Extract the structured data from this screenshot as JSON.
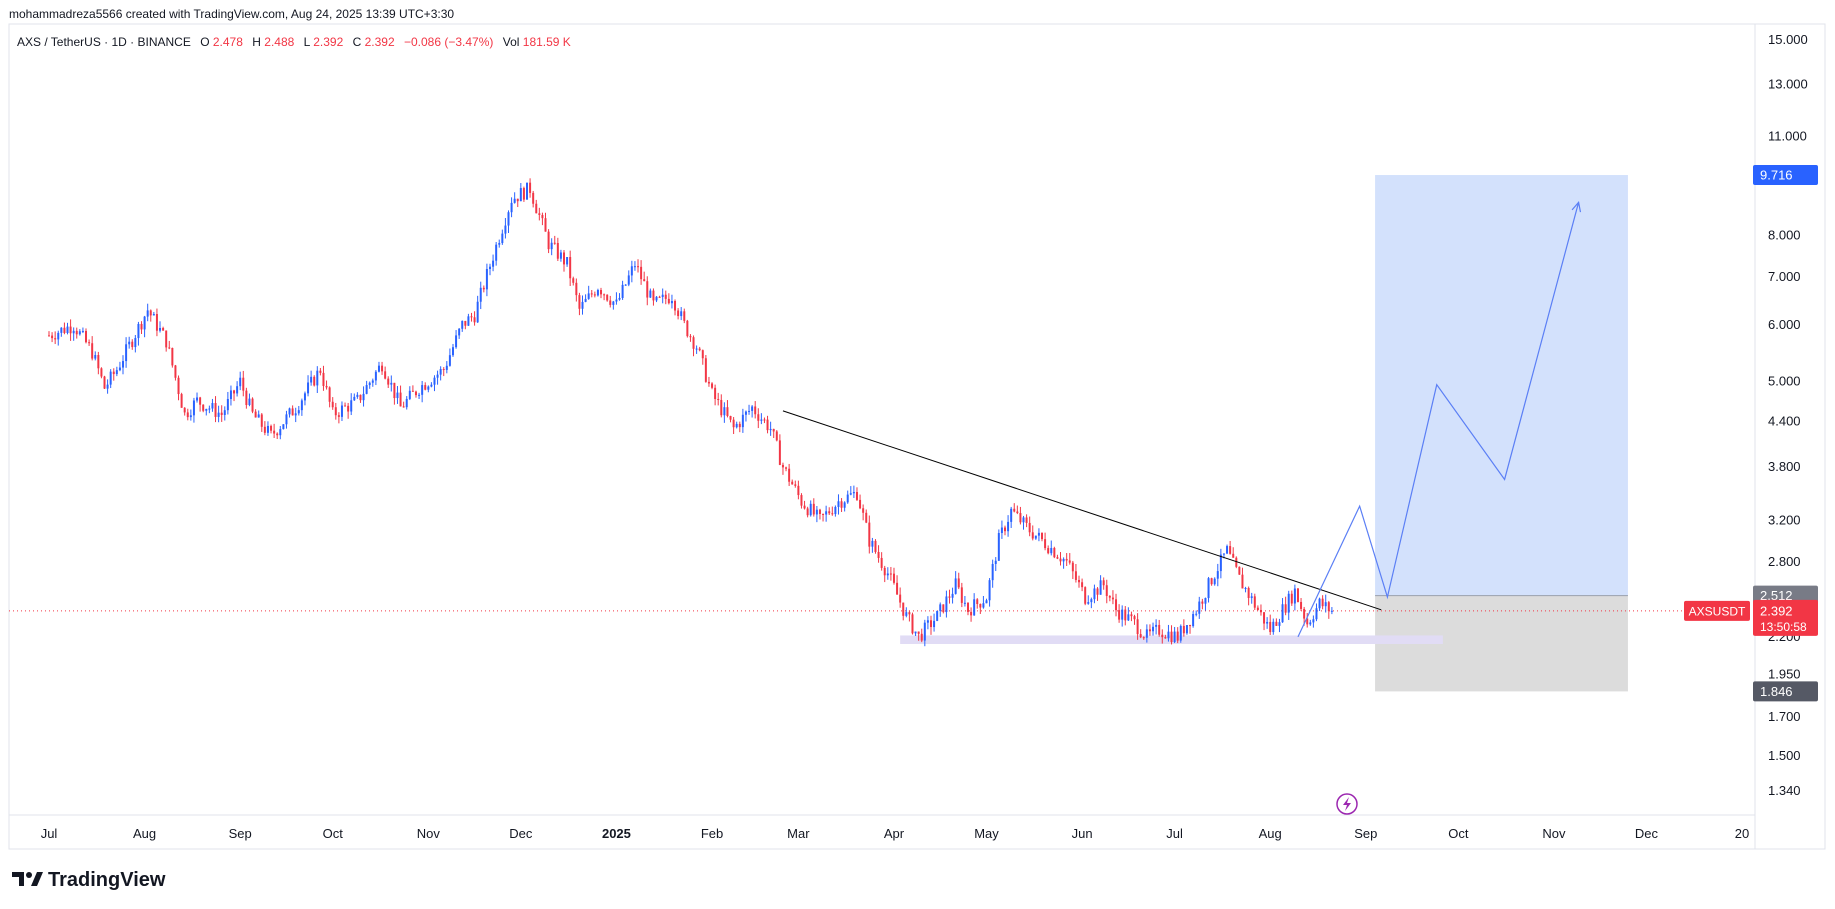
{
  "header": {
    "credit": "mohammadreza5566 created with TradingView.com, Aug 24, 2025 13:39 UTC+3:30"
  },
  "legend": {
    "symbol": "AXS / TetherUS · 1D · BINANCE",
    "o_label": "O",
    "o_value": "2.478",
    "h_label": "H",
    "h_value": "2.488",
    "l_label": "L",
    "l_value": "2.392",
    "c_label": "C",
    "c_value": "2.392",
    "change": "−0.086 (−3.47%)",
    "vol_label": "Vol",
    "vol_value": "181.59 K"
  },
  "footer": {
    "brand": "TradingView"
  },
  "price_tags": {
    "symbol": "AXSUSDT",
    "last_price": "2.392",
    "countdown": "13:50:58",
    "target": "9.716",
    "entry": "2.512",
    "stop": "1.846"
  },
  "colors": {
    "up": "#2962ff",
    "down": "#f23645",
    "target_zone": "#d1dffc",
    "stop_zone": "#dcdcdc",
    "support_zone": "#e1dcf5",
    "projection": "#5b7ff5",
    "trendline": "#000000",
    "target_tag": "#2962ff",
    "entry_tag": "#787b86",
    "stop_tag": "#555965",
    "last_price_tag": "#f23645"
  },
  "chart_data": {
    "type": "candlestick",
    "symbol": "AXSUSDT",
    "timeframe": "1D",
    "exchange": "BINANCE",
    "y_scale": "log",
    "y_ticks": [
      "15.000",
      "13.000",
      "11.000",
      "8.000",
      "7.000",
      "6.000",
      "5.000",
      "4.400",
      "3.800",
      "3.200",
      "2.800",
      "2.200",
      "1.950",
      "1.700",
      "1.500",
      "1.340"
    ],
    "y_tick_values": [
      15,
      13,
      11,
      8,
      7,
      6,
      5,
      4.4,
      3.8,
      3.2,
      2.8,
      2.2,
      1.95,
      1.7,
      1.5,
      1.34
    ],
    "x_labels": [
      "Jul",
      "Aug",
      "Sep",
      "Oct",
      "Nov",
      "Dec",
      "2025",
      "Feb",
      "Mar",
      "Apr",
      "May",
      "Jun",
      "Jul",
      "Aug",
      "Sep",
      "Oct",
      "Nov",
      "Dec",
      "20"
    ],
    "x_label_days": [
      0,
      31,
      62,
      92,
      123,
      153,
      184,
      215,
      243,
      274,
      304,
      335,
      365,
      396,
      427,
      457,
      488,
      518,
      549
    ],
    "ohlc_keypoints": [
      {
        "d": 0,
        "c": 5.8
      },
      {
        "d": 8,
        "c": 6.0
      },
      {
        "d": 14,
        "c": 5.5
      },
      {
        "d": 18,
        "c": 4.9
      },
      {
        "d": 22,
        "c": 5.2
      },
      {
        "d": 32,
        "c": 6.3
      },
      {
        "d": 38,
        "c": 5.7
      },
      {
        "d": 44,
        "c": 4.5
      },
      {
        "d": 48,
        "c": 4.7
      },
      {
        "d": 56,
        "c": 4.5
      },
      {
        "d": 62,
        "c": 5.0
      },
      {
        "d": 66,
        "c": 4.5
      },
      {
        "d": 72,
        "c": 4.2
      },
      {
        "d": 80,
        "c": 4.6
      },
      {
        "d": 88,
        "c": 5.2
      },
      {
        "d": 92,
        "c": 4.5
      },
      {
        "d": 100,
        "c": 4.7
      },
      {
        "d": 108,
        "c": 5.3
      },
      {
        "d": 114,
        "c": 4.6
      },
      {
        "d": 120,
        "c": 4.9
      },
      {
        "d": 128,
        "c": 5.2
      },
      {
        "d": 134,
        "c": 6.0
      },
      {
        "d": 138,
        "c": 6.2
      },
      {
        "d": 144,
        "c": 7.5
      },
      {
        "d": 150,
        "c": 9.0
      },
      {
        "d": 156,
        "c": 9.3
      },
      {
        "d": 162,
        "c": 7.8
      },
      {
        "d": 168,
        "c": 7.3
      },
      {
        "d": 172,
        "c": 6.3
      },
      {
        "d": 178,
        "c": 6.8
      },
      {
        "d": 184,
        "c": 6.4
      },
      {
        "d": 190,
        "c": 7.3
      },
      {
        "d": 196,
        "c": 6.4
      },
      {
        "d": 202,
        "c": 6.6
      },
      {
        "d": 206,
        "c": 6.0
      },
      {
        "d": 210,
        "c": 5.6
      },
      {
        "d": 215,
        "c": 4.8
      },
      {
        "d": 222,
        "c": 4.3
      },
      {
        "d": 228,
        "c": 4.6
      },
      {
        "d": 234,
        "c": 4.3
      },
      {
        "d": 238,
        "c": 3.8
      },
      {
        "d": 244,
        "c": 3.4
      },
      {
        "d": 250,
        "c": 3.2
      },
      {
        "d": 256,
        "c": 3.4
      },
      {
        "d": 262,
        "c": 3.5
      },
      {
        "d": 266,
        "c": 3.0
      },
      {
        "d": 272,
        "c": 2.7
      },
      {
        "d": 278,
        "c": 2.35
      },
      {
        "d": 282,
        "c": 2.2
      },
      {
        "d": 288,
        "c": 2.35
      },
      {
        "d": 294,
        "c": 2.6
      },
      {
        "d": 298,
        "c": 2.4
      },
      {
        "d": 304,
        "c": 2.5
      },
      {
        "d": 308,
        "c": 3.0
      },
      {
        "d": 312,
        "c": 3.3
      },
      {
        "d": 318,
        "c": 3.1
      },
      {
        "d": 324,
        "c": 2.95
      },
      {
        "d": 330,
        "c": 2.8
      },
      {
        "d": 336,
        "c": 2.5
      },
      {
        "d": 342,
        "c": 2.6
      },
      {
        "d": 346,
        "c": 2.4
      },
      {
        "d": 352,
        "c": 2.3
      },
      {
        "d": 356,
        "c": 2.2
      },
      {
        "d": 360,
        "c": 2.25
      },
      {
        "d": 366,
        "c": 2.2
      },
      {
        "d": 372,
        "c": 2.4
      },
      {
        "d": 378,
        "c": 2.7
      },
      {
        "d": 382,
        "c": 2.9
      },
      {
        "d": 386,
        "c": 2.65
      },
      {
        "d": 392,
        "c": 2.4
      },
      {
        "d": 396,
        "c": 2.25
      },
      {
        "d": 400,
        "c": 2.4
      },
      {
        "d": 404,
        "c": 2.55
      },
      {
        "d": 408,
        "c": 2.3
      },
      {
        "d": 412,
        "c": 2.45
      },
      {
        "d": 416,
        "c": 2.392
      }
    ],
    "last_close": 2.392,
    "drawings": {
      "trendline": {
        "from": {
          "d": 238,
          "price": 4.55
        },
        "to": {
          "d": 432,
          "price": 2.4
        }
      },
      "support_zone": {
        "from_d": 276,
        "to_d": 452,
        "low": 2.15,
        "high": 2.21
      },
      "long_position": {
        "from_d": 430,
        "to_d": 512,
        "entry": 2.512,
        "target": 9.716,
        "stop": 1.846
      },
      "projection_path": [
        {
          "d": 405,
          "price": 2.2
        },
        {
          "d": 425,
          "price": 3.35
        },
        {
          "d": 434,
          "price": 2.5
        },
        {
          "d": 450,
          "price": 4.95
        },
        {
          "d": 472,
          "price": 3.65
        },
        {
          "d": 496,
          "price": 8.9
        }
      ]
    }
  }
}
